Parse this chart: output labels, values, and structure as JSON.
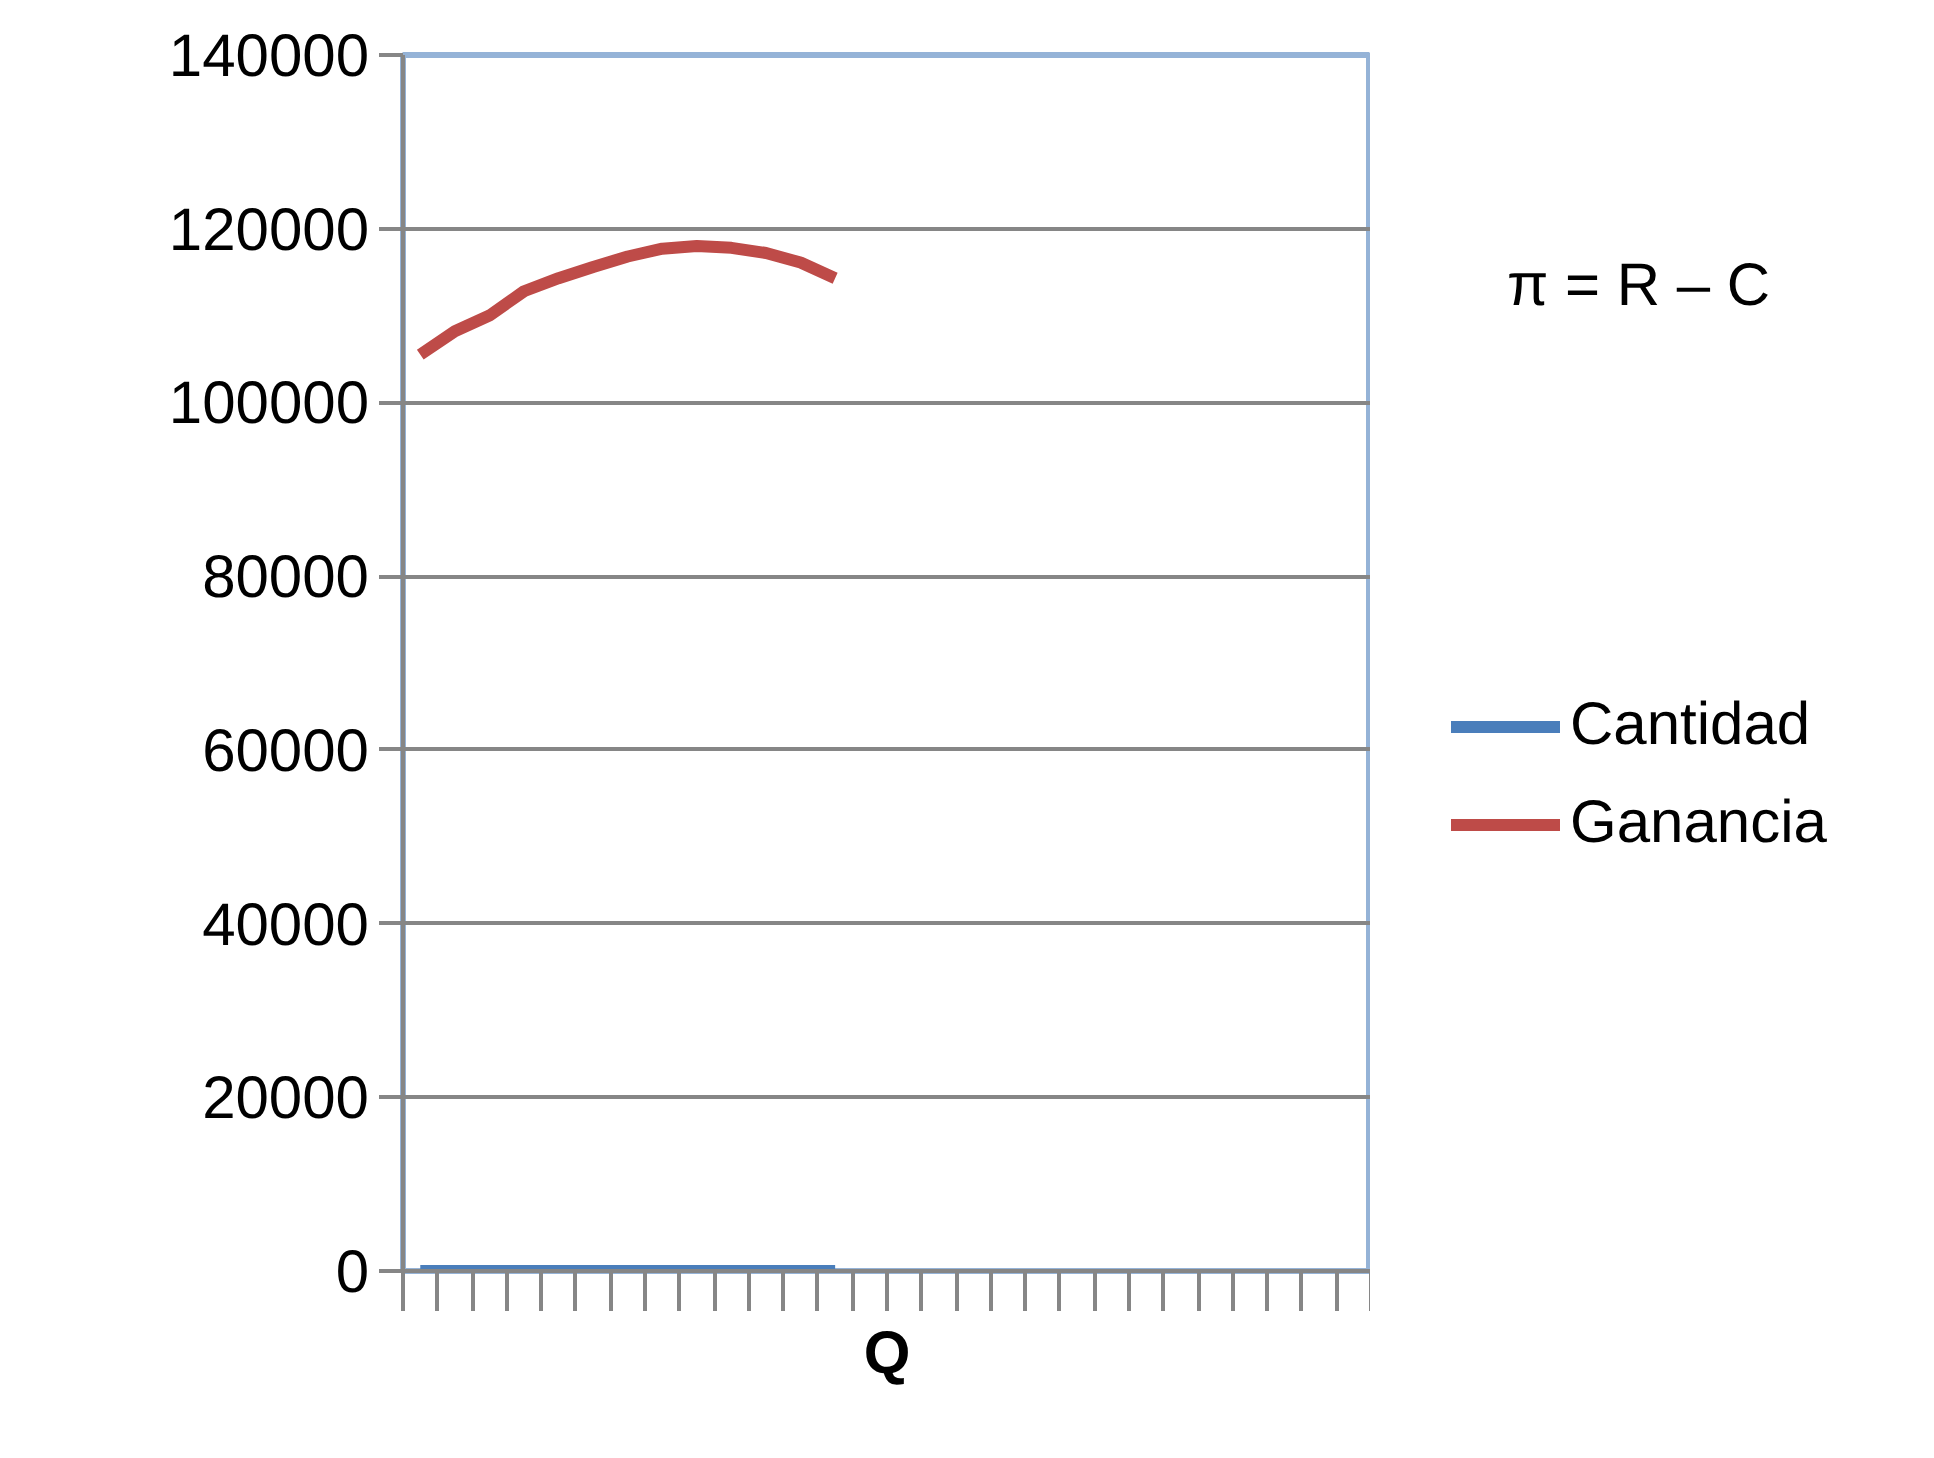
{
  "chart_data": {
    "type": "line",
    "xlabel": "Q",
    "categories": [
      null,
      null,
      null,
      null,
      null,
      null,
      null,
      null,
      null,
      null,
      null,
      null,
      null,
      null,
      null,
      null,
      null,
      null,
      null,
      null,
      null,
      null,
      null,
      null,
      null,
      null,
      null,
      null
    ],
    "series": [
      {
        "name": "Cantidad",
        "color": "#4a7ebb",
        "values": [
          0,
          0,
          0,
          0,
          0,
          0,
          0,
          0,
          0,
          0,
          0,
          0,
          0,
          null,
          null,
          null,
          null,
          null,
          null,
          null,
          null,
          null,
          null,
          null,
          null,
          null,
          null,
          null
        ]
      },
      {
        "name": "Ganancia",
        "color": "#be4b48",
        "values": [
          105500,
          108200,
          110000,
          112800,
          114300,
          115600,
          116800,
          117700,
          118000,
          117800,
          117200,
          116100,
          114300,
          null,
          null,
          null,
          null,
          null,
          null,
          null,
          null,
          null,
          null,
          null,
          null,
          null,
          null,
          null
        ]
      }
    ],
    "ylim": [
      0,
      140000
    ],
    "yticks": [
      0,
      20000,
      40000,
      60000,
      80000,
      100000,
      120000,
      140000
    ],
    "grid": "y",
    "legend": "right",
    "tick_labels": "y",
    "marker": "none",
    "line_style": "solid",
    "annotations": [
      "π = R – C"
    ]
  }
}
